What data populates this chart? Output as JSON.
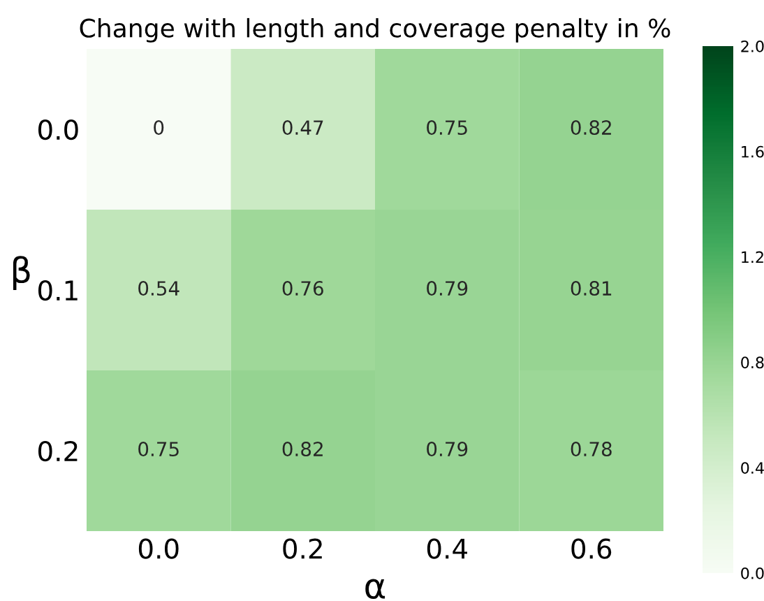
{
  "chart_data": {
    "type": "heatmap",
    "title": "Change with length and coverage penalty in %",
    "xlabel": "α",
    "ylabel": "β",
    "categories": [
      "0.0",
      "0.2",
      "0.4",
      "0.6"
    ],
    "y_categories": [
      "0.0",
      "0.1",
      "0.2"
    ],
    "cells": [
      [
        0,
        0.47,
        0.75,
        0.82
      ],
      [
        0.54,
        0.76,
        0.79,
        0.81
      ],
      [
        0.75,
        0.82,
        0.79,
        0.78
      ]
    ],
    "data_labels": true,
    "clim": [
      0.0,
      2.0
    ],
    "cticks": [
      {
        "value": 0.0,
        "label": "0.0"
      },
      {
        "value": 0.4,
        "label": "0.4"
      },
      {
        "value": 0.8,
        "label": "0.8"
      },
      {
        "value": 1.2,
        "label": "1.2"
      },
      {
        "value": 1.6,
        "label": "1.6"
      },
      {
        "value": 2.0,
        "label": "2.0"
      }
    ]
  }
}
